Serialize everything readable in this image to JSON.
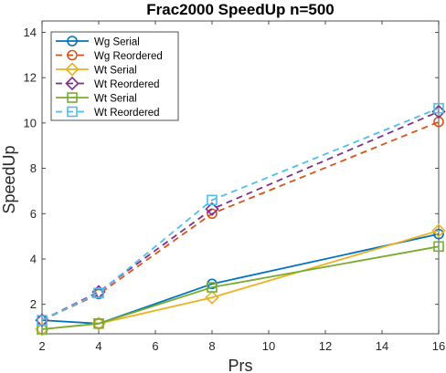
{
  "chart_data": {
    "type": "line",
    "title": "Frac2000 SpeedUp n=500",
    "xlabel": "Prs",
    "ylabel": "SpeedUp",
    "xlim": [
      2,
      16
    ],
    "ylim": [
      0.7,
      14.5
    ],
    "xticks": [
      2,
      4,
      6,
      8,
      10,
      12,
      14,
      16
    ],
    "yticks": [
      2,
      4,
      6,
      8,
      10,
      12,
      14
    ],
    "x": [
      2,
      4,
      8,
      16
    ],
    "grid": false,
    "legend_position": "top-left",
    "series": [
      {
        "name": "Wg Serial",
        "values": [
          1.3,
          1.15,
          2.9,
          5.1
        ],
        "color": "#0072BD",
        "dash": "solid",
        "marker": "circle"
      },
      {
        "name": "Wg Reordered",
        "values": [
          1.3,
          2.45,
          6.0,
          10.05
        ],
        "color": "#D95319",
        "dash": "dashed",
        "marker": "circle"
      },
      {
        "name": "Wt Serial",
        "values": [
          0.9,
          1.15,
          2.3,
          5.25
        ],
        "color": "#EDB120",
        "dash": "solid",
        "marker": "diamond"
      },
      {
        "name": "Wt Reordered",
        "values": [
          1.3,
          2.55,
          6.2,
          10.5
        ],
        "color": "#7E2F8E",
        "dash": "dashed",
        "marker": "diamond"
      },
      {
        "name": "Wt Serial",
        "values": [
          0.9,
          1.15,
          2.75,
          4.55
        ],
        "color": "#77AC30",
        "dash": "solid",
        "marker": "square"
      },
      {
        "name": "Wt Reordered",
        "values": [
          1.3,
          2.5,
          6.6,
          10.65
        ],
        "color": "#4DBEEE",
        "dash": "dashed",
        "marker": "square"
      }
    ]
  }
}
